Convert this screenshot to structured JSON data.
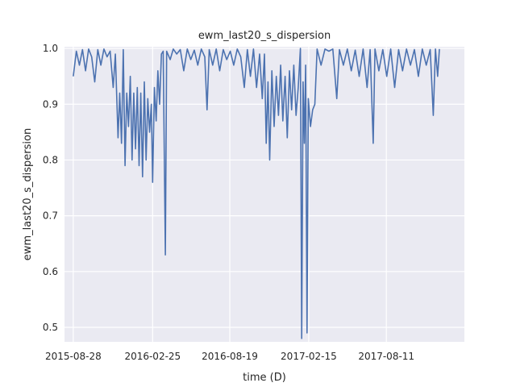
{
  "chart_data": {
    "type": "line",
    "title": "ewm_last20_s_dispersion",
    "xlabel": "time (D)",
    "ylabel": "ewm_last20_s_dispersion",
    "x_tick_labels": [
      "2015-08-28",
      "2016-02-25",
      "2016-08-19",
      "2017-02-15",
      "2017-08-11"
    ],
    "y_tick_labels": [
      "0.5",
      "0.6",
      "0.7",
      "0.8",
      "0.9",
      "1.0"
    ],
    "xlim": [
      "2015-08-08",
      "2018-02-05"
    ],
    "ylim": [
      0.474,
      1.003
    ],
    "grid": true,
    "colors": {
      "line": "#4c72b0",
      "plot_bg": "#eaeaf2",
      "grid": "#ffffff"
    },
    "series": [
      {
        "points": [
          [
            "2015-08-28",
            0.95
          ],
          [
            "2015-09-04",
            0.995
          ],
          [
            "2015-09-11",
            0.97
          ],
          [
            "2015-09-18",
            0.998
          ],
          [
            "2015-09-25",
            0.96
          ],
          [
            "2015-10-02",
            0.999
          ],
          [
            "2015-10-09",
            0.985
          ],
          [
            "2015-10-16",
            0.94
          ],
          [
            "2015-10-23",
            0.998
          ],
          [
            "2015-10-30",
            0.97
          ],
          [
            "2015-11-06",
            0.999
          ],
          [
            "2015-11-13",
            0.985
          ],
          [
            "2015-11-20",
            0.995
          ],
          [
            "2015-11-27",
            0.93
          ],
          [
            "2015-12-02",
            0.99
          ],
          [
            "2015-12-08",
            0.84
          ],
          [
            "2015-12-12",
            0.92
          ],
          [
            "2015-12-16",
            0.83
          ],
          [
            "2015-12-20",
            0.998
          ],
          [
            "2015-12-24",
            0.79
          ],
          [
            "2015-12-28",
            0.92
          ],
          [
            "2016-01-01",
            0.86
          ],
          [
            "2016-01-05",
            0.95
          ],
          [
            "2016-01-09",
            0.8
          ],
          [
            "2016-01-13",
            0.92
          ],
          [
            "2016-01-17",
            0.82
          ],
          [
            "2016-01-21",
            0.93
          ],
          [
            "2016-01-25",
            0.79
          ],
          [
            "2016-01-29",
            0.92
          ],
          [
            "2016-02-02",
            0.77
          ],
          [
            "2016-02-06",
            0.94
          ],
          [
            "2016-02-10",
            0.8
          ],
          [
            "2016-02-14",
            0.91
          ],
          [
            "2016-02-18",
            0.85
          ],
          [
            "2016-02-22",
            0.9
          ],
          [
            "2016-02-25",
            0.76
          ],
          [
            "2016-02-29",
            0.93
          ],
          [
            "2016-03-04",
            0.87
          ],
          [
            "2016-03-08",
            0.96
          ],
          [
            "2016-03-12",
            0.9
          ],
          [
            "2016-03-16",
            0.99
          ],
          [
            "2016-03-20",
            0.995
          ],
          [
            "2016-03-25",
            0.63
          ],
          [
            "2016-03-28",
            0.995
          ],
          [
            "2016-04-05",
            0.98
          ],
          [
            "2016-04-12",
            0.999
          ],
          [
            "2016-04-20",
            0.99
          ],
          [
            "2016-04-28",
            0.998
          ],
          [
            "2016-05-06",
            0.96
          ],
          [
            "2016-05-14",
            0.999
          ],
          [
            "2016-05-22",
            0.98
          ],
          [
            "2016-05-30",
            0.997
          ],
          [
            "2016-06-07",
            0.97
          ],
          [
            "2016-06-15",
            0.999
          ],
          [
            "2016-06-23",
            0.985
          ],
          [
            "2016-06-28",
            0.89
          ],
          [
            "2016-07-03",
            0.998
          ],
          [
            "2016-07-11",
            0.97
          ],
          [
            "2016-07-19",
            0.999
          ],
          [
            "2016-07-27",
            0.96
          ],
          [
            "2016-08-04",
            0.998
          ],
          [
            "2016-08-12",
            0.98
          ],
          [
            "2016-08-20",
            0.995
          ],
          [
            "2016-08-28",
            0.97
          ],
          [
            "2016-09-05",
            0.999
          ],
          [
            "2016-09-13",
            0.985
          ],
          [
            "2016-09-21",
            0.93
          ],
          [
            "2016-09-28",
            0.998
          ],
          [
            "2016-10-05",
            0.95
          ],
          [
            "2016-10-12",
            0.999
          ],
          [
            "2016-10-19",
            0.93
          ],
          [
            "2016-10-26",
            0.99
          ],
          [
            "2016-11-01",
            0.91
          ],
          [
            "2016-11-06",
            0.99
          ],
          [
            "2016-11-10",
            0.83
          ],
          [
            "2016-11-14",
            0.94
          ],
          [
            "2016-11-18",
            0.8
          ],
          [
            "2016-11-23",
            0.96
          ],
          [
            "2016-11-28",
            0.86
          ],
          [
            "2016-12-03",
            0.95
          ],
          [
            "2016-12-08",
            0.88
          ],
          [
            "2016-12-13",
            0.97
          ],
          [
            "2016-12-18",
            0.87
          ],
          [
            "2016-12-23",
            0.95
          ],
          [
            "2016-12-28",
            0.84
          ],
          [
            "2017-01-02",
            0.96
          ],
          [
            "2017-01-07",
            0.89
          ],
          [
            "2017-01-12",
            0.97
          ],
          [
            "2017-01-17",
            0.88
          ],
          [
            "2017-01-22",
            0.93
          ],
          [
            "2017-01-27",
            1.0
          ],
          [
            "2017-01-30",
            0.48
          ],
          [
            "2017-02-02",
            0.94
          ],
          [
            "2017-02-05",
            0.83
          ],
          [
            "2017-02-08",
            0.97
          ],
          [
            "2017-02-11",
            0.49
          ],
          [
            "2017-02-14",
            0.91
          ],
          [
            "2017-02-19",
            0.86
          ],
          [
            "2017-02-24",
            0.89
          ],
          [
            "2017-03-01",
            0.9
          ],
          [
            "2017-03-06",
            0.999
          ],
          [
            "2017-03-15",
            0.97
          ],
          [
            "2017-03-24",
            0.999
          ],
          [
            "2017-04-02",
            0.995
          ],
          [
            "2017-04-11",
            0.999
          ],
          [
            "2017-04-20",
            0.91
          ],
          [
            "2017-04-26",
            0.998
          ],
          [
            "2017-05-05",
            0.97
          ],
          [
            "2017-05-14",
            0.999
          ],
          [
            "2017-05-23",
            0.96
          ],
          [
            "2017-06-01",
            0.997
          ],
          [
            "2017-06-10",
            0.95
          ],
          [
            "2017-06-19",
            0.999
          ],
          [
            "2017-06-28",
            0.93
          ],
          [
            "2017-07-05",
            0.998
          ],
          [
            "2017-07-12",
            0.83
          ],
          [
            "2017-07-16",
            0.999
          ],
          [
            "2017-07-25",
            0.96
          ],
          [
            "2017-08-03",
            0.998
          ],
          [
            "2017-08-12",
            0.95
          ],
          [
            "2017-08-21",
            0.999
          ],
          [
            "2017-08-30",
            0.93
          ],
          [
            "2017-09-08",
            0.998
          ],
          [
            "2017-09-17",
            0.96
          ],
          [
            "2017-09-26",
            0.999
          ],
          [
            "2017-10-05",
            0.97
          ],
          [
            "2017-10-14",
            0.998
          ],
          [
            "2017-10-23",
            0.95
          ],
          [
            "2017-11-01",
            0.999
          ],
          [
            "2017-11-10",
            0.97
          ],
          [
            "2017-11-19",
            0.998
          ],
          [
            "2017-11-26",
            0.88
          ],
          [
            "2017-12-01",
            0.999
          ],
          [
            "2017-12-06",
            0.95
          ],
          [
            "2017-12-10",
            0.999
          ]
        ]
      }
    ]
  }
}
